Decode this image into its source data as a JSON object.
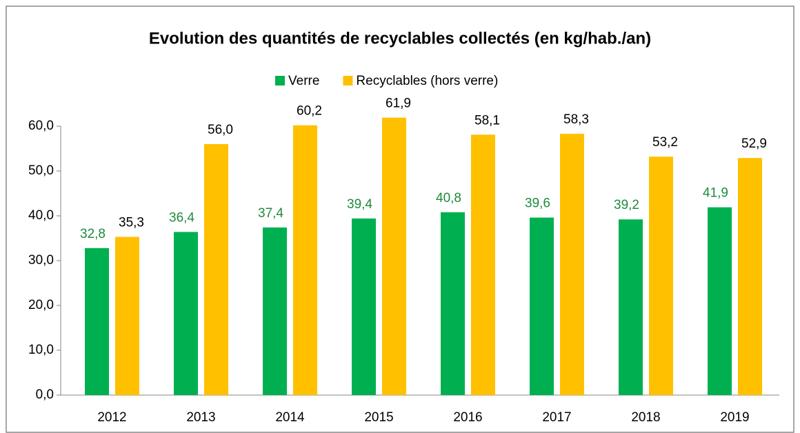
{
  "chart_data": {
    "type": "bar",
    "title": "Evolution des quantités de recyclables collectés (en kg/hab./an)",
    "categories": [
      "2012",
      "2013",
      "2014",
      "2015",
      "2016",
      "2017",
      "2018",
      "2019"
    ],
    "series": [
      {
        "name": "Verre",
        "color": "#00b050",
        "label_color": "#1e8a3c",
        "values": [
          32.8,
          36.4,
          37.4,
          39.4,
          40.8,
          39.6,
          39.2,
          41.9
        ],
        "value_labels": [
          "32,8",
          "36,4",
          "37,4",
          "39,4",
          "40,8",
          "39,6",
          "39,2",
          "41,9"
        ]
      },
      {
        "name": "Recyclables (hors verre)",
        "color": "#ffc000",
        "label_color": "#000000",
        "values": [
          35.3,
          56.0,
          60.2,
          61.9,
          58.1,
          58.3,
          53.2,
          52.9
        ],
        "value_labels": [
          "35,3",
          "56,0",
          "60,2",
          "61,9",
          "58,1",
          "58,3",
          "53,2",
          "52,9"
        ]
      }
    ],
    "ylim": [
      0,
      60
    ],
    "yticks": [
      {
        "value": 0,
        "label": "0,0"
      },
      {
        "value": 10,
        "label": "10,0"
      },
      {
        "value": 20,
        "label": "20,0"
      },
      {
        "value": 30,
        "label": "30,0"
      },
      {
        "value": 40,
        "label": "40,0"
      },
      {
        "value": 50,
        "label": "50,0"
      },
      {
        "value": 60,
        "label": "60,0"
      }
    ],
    "legend": "top"
  }
}
